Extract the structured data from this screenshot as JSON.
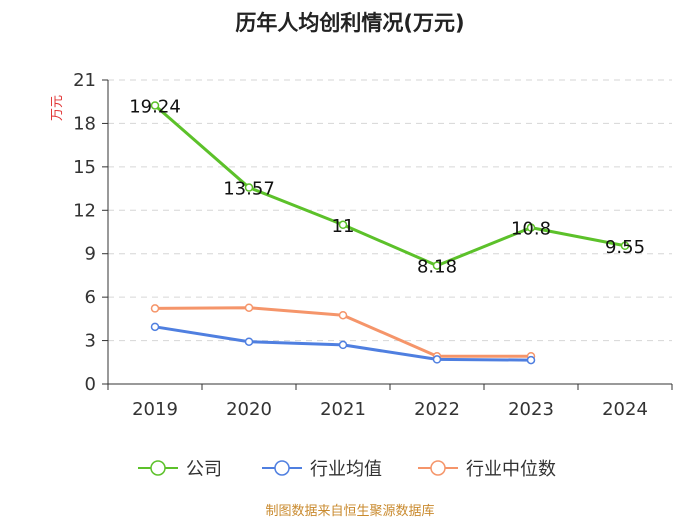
{
  "chart_data": {
    "type": "line",
    "title": "历年人均创利情况(万元)",
    "ylabel": "万元",
    "xlabel": "",
    "categories": [
      "2019",
      "2020",
      "2021",
      "2022",
      "2023",
      "2024"
    ],
    "ylim": [
      0,
      21
    ],
    "yticks": [
      0,
      3,
      6,
      9,
      12,
      15,
      18,
      21
    ],
    "grid": true,
    "legend_position": "bottom",
    "series": [
      {
        "name": "公司",
        "color": "#5cc12a",
        "values": [
          19.24,
          13.57,
          11,
          8.18,
          10.8,
          9.55
        ],
        "labels": [
          "19.24",
          "13.57",
          "11",
          "8.18",
          "10.8",
          "9.55"
        ]
      },
      {
        "name": "行业均值",
        "color": "#4f7fe0",
        "values": [
          3.95,
          2.92,
          2.7,
          1.7,
          1.65,
          null
        ]
      },
      {
        "name": "行业中位数",
        "color": "#f5956a",
        "values": [
          5.22,
          5.27,
          4.75,
          1.92,
          1.92,
          null
        ]
      }
    ],
    "source": "制图数据来自恒生聚源数据库"
  }
}
